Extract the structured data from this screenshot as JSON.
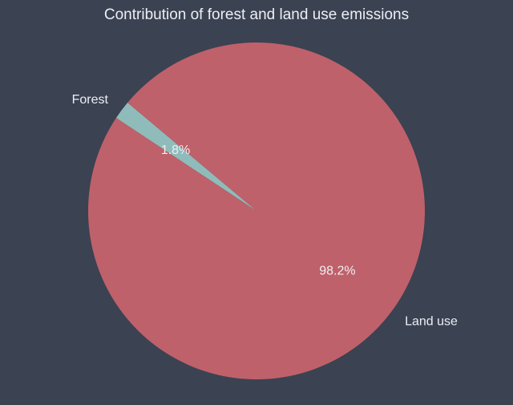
{
  "chart_data": {
    "type": "pie",
    "title": "Contribution of forest and land use emissions",
    "start_angle_deg": 140,
    "counterclockwise": true,
    "slices": [
      {
        "name": "Forest",
        "value": 1.8,
        "label": "Forest",
        "pct_label": "1.8%",
        "color": "#8fbcbb"
      },
      {
        "name": "Land use",
        "value": 98.2,
        "label": "Land use",
        "pct_label": "98.2%",
        "color": "#bf616a"
      }
    ],
    "background": "#3b4252",
    "text_color": "#eceff4"
  }
}
